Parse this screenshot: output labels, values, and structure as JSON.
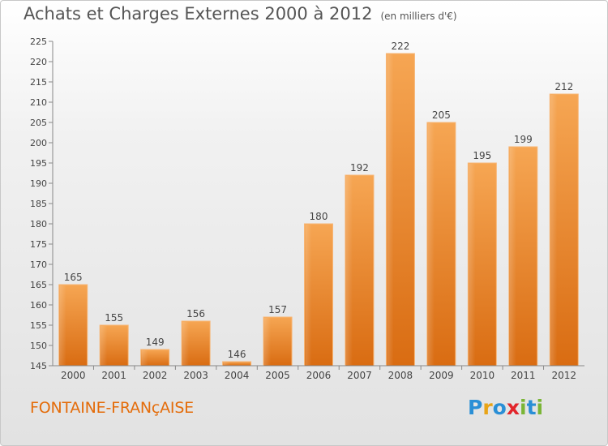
{
  "header": {
    "title": "Achats et Charges Externes 2000 à 2012",
    "subtitle": "(en milliers d'€)"
  },
  "footer": {
    "commune": "FONTAINE-FRANçAISE"
  },
  "logo": {
    "text": "Proxiti",
    "letters": [
      {
        "char": "P",
        "color": "#2a8fd6"
      },
      {
        "char": "r",
        "color": "#e8a417"
      },
      {
        "char": "o",
        "color": "#2a8fd6"
      },
      {
        "char": "x",
        "color": "#e2252b"
      },
      {
        "char": "i",
        "color": "#7ab536"
      },
      {
        "char": "t",
        "color": "#2a8fd6"
      },
      {
        "char": "i",
        "color": "#7ab536"
      }
    ]
  },
  "chart_data": {
    "type": "bar",
    "categories": [
      "2000",
      "2001",
      "2002",
      "2003",
      "2004",
      "2005",
      "2006",
      "2007",
      "2008",
      "2009",
      "2010",
      "2011",
      "2012"
    ],
    "values": [
      165,
      155,
      149,
      156,
      146,
      157,
      180,
      192,
      222,
      205,
      195,
      199,
      212
    ],
    "ylim": [
      145,
      225
    ],
    "yticks": [
      145,
      150,
      155,
      160,
      165,
      170,
      175,
      180,
      185,
      190,
      195,
      200,
      205,
      210,
      215,
      220,
      225
    ],
    "grid": false,
    "bar_color": "#f0923a",
    "xlabel": "",
    "ylabel": ""
  }
}
